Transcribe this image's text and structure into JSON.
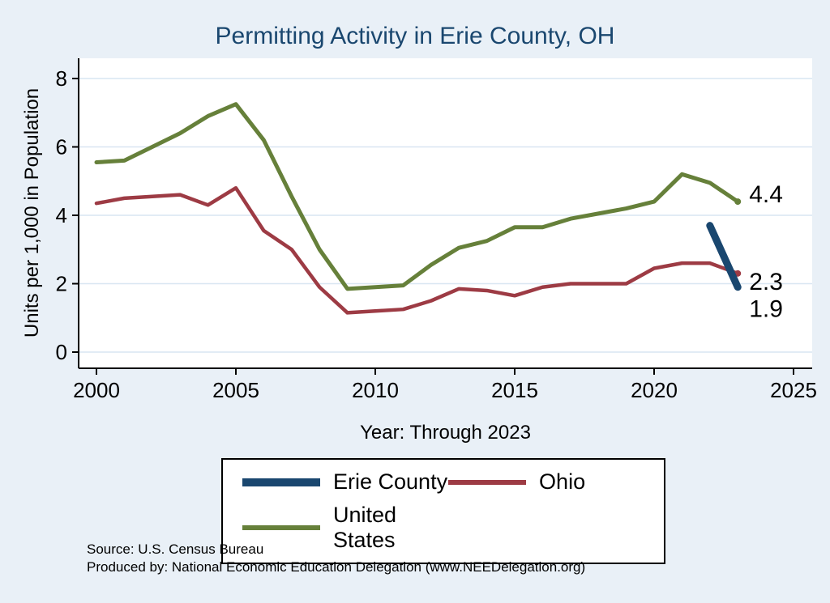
{
  "title": "Permitting Activity in Erie County, OH",
  "chart_data": {
    "type": "line",
    "title": "Permitting Activity in Erie County, OH",
    "xlabel": "Year: Through 2023",
    "ylabel": "Units per 1,000 in Population",
    "xlim": [
      2000,
      2025
    ],
    "ylim": [
      0,
      8
    ],
    "x_ticks": [
      2000,
      2005,
      2010,
      2015,
      2020,
      2025
    ],
    "y_ticks": [
      0,
      2,
      4,
      6,
      8
    ],
    "grid": true,
    "legend_position": "bottom",
    "background_color": "#e9f0f7",
    "plot_background_color": "#ffffff",
    "grid_color": "#d9e6f2",
    "title_color": "#1a476f",
    "series": [
      {
        "name": "Erie County",
        "color": "#1a476f",
        "width": 9,
        "x": [
          2022,
          2023
        ],
        "values": [
          3.7,
          1.9
        ],
        "end_label": "1.9",
        "end_label_dy": 27
      },
      {
        "name": "Ohio",
        "color": "#9d3b44",
        "width": 4.5,
        "x": [
          2000,
          2001,
          2002,
          2003,
          2004,
          2005,
          2006,
          2007,
          2008,
          2009,
          2010,
          2011,
          2012,
          2013,
          2014,
          2015,
          2016,
          2017,
          2018,
          2019,
          2020,
          2021,
          2022,
          2023
        ],
        "values": [
          4.35,
          4.5,
          4.55,
          4.6,
          4.3,
          4.8,
          3.55,
          3.0,
          1.9,
          1.15,
          1.2,
          1.25,
          1.5,
          1.85,
          1.8,
          1.65,
          1.9,
          2.0,
          2.0,
          2.0,
          2.45,
          2.6,
          2.6,
          2.3
        ],
        "end_label": "2.3",
        "end_label_dy": 10
      },
      {
        "name": "United States",
        "color": "#66803a",
        "width": 5,
        "x": [
          2000,
          2001,
          2002,
          2003,
          2004,
          2005,
          2006,
          2007,
          2008,
          2009,
          2010,
          2011,
          2012,
          2013,
          2014,
          2015,
          2016,
          2017,
          2018,
          2019,
          2020,
          2021,
          2022,
          2023
        ],
        "values": [
          5.55,
          5.6,
          6.0,
          6.4,
          6.9,
          7.25,
          6.2,
          4.55,
          3.0,
          1.85,
          1.9,
          1.95,
          2.55,
          3.05,
          3.25,
          3.65,
          3.65,
          3.9,
          4.05,
          4.2,
          4.4,
          5.2,
          4.95,
          4.4
        ],
        "end_label": "4.4",
        "end_label_dy": -9
      }
    ]
  },
  "footer": {
    "source": "Source: U.S. Census Bureau",
    "produced_by": "Produced by: National Economic Education Delegation (www.NEEDelegation.org)"
  }
}
